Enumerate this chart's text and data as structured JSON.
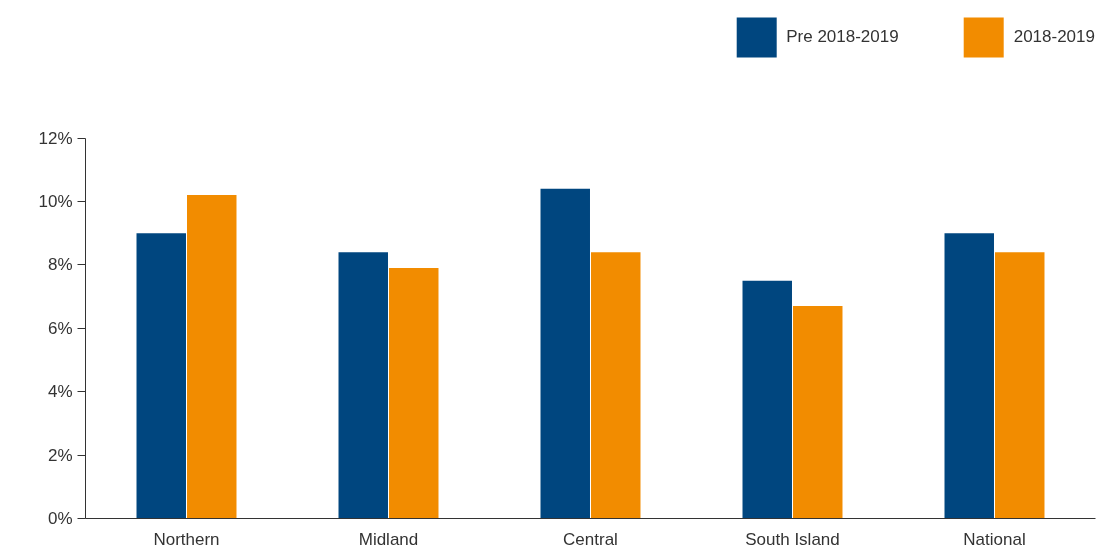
{
  "chart_data": {
    "type": "bar",
    "categories": [
      "Northern",
      "Midland",
      "Central",
      "South Island",
      "National"
    ],
    "series": [
      {
        "name": "Pre 2018-2019",
        "color": "#00467f",
        "values": [
          9.0,
          8.4,
          10.4,
          7.5,
          9.0
        ]
      },
      {
        "name": "2018-2019",
        "color": "#f28c00",
        "values": [
          10.2,
          7.9,
          8.4,
          6.7,
          8.4
        ]
      }
    ],
    "ylim": [
      0,
      12
    ],
    "yticks": [
      {
        "value": 0,
        "label": "0%"
      },
      {
        "value": 2,
        "label": "2%"
      },
      {
        "value": 4,
        "label": "4%"
      },
      {
        "value": 6,
        "label": "6%"
      },
      {
        "value": 8,
        "label": "8%"
      },
      {
        "value": 10,
        "label": "10%"
      },
      {
        "value": 12,
        "label": "12%"
      }
    ],
    "legend": "top right"
  }
}
